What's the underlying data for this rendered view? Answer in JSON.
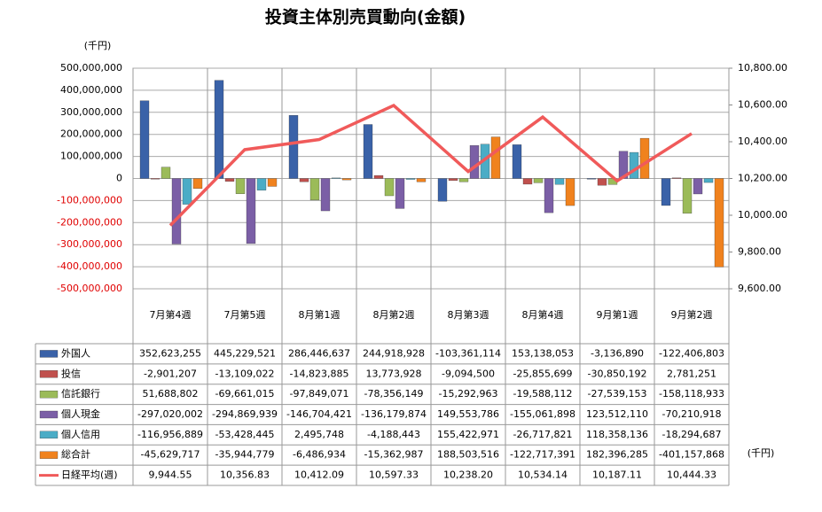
{
  "chart_data": {
    "type": "bar",
    "title": "投資主体別売買動向(金額)",
    "y_unit": "(千円)",
    "y2_unit": "(千円)",
    "categories": [
      "7月第4週",
      "7月第5週",
      "8月第1週",
      "8月第2週",
      "8月第3週",
      "8月第4週",
      "9月第1週",
      "9月第2週"
    ],
    "ylim": [
      -500000000,
      500000000
    ],
    "yticks": [
      {
        "value": -500000000,
        "label": "-500,000,000"
      },
      {
        "value": -400000000,
        "label": "-400,000,000"
      },
      {
        "value": -300000000,
        "label": "-300,000,000"
      },
      {
        "value": -200000000,
        "label": "-200,000,000"
      },
      {
        "value": -100000000,
        "label": "-100,000,000"
      },
      0,
      {
        "value": 100000000,
        "label": "100,000,000"
      },
      {
        "value": 200000000,
        "label": "200,000,000"
      },
      {
        "value": 300000000,
        "label": "300,000,000"
      },
      {
        "value": 400000000,
        "label": "400,000,000"
      },
      {
        "value": 500000000,
        "label": "500,000,000"
      }
    ],
    "y2lim": [
      9600,
      10800
    ],
    "y2ticks": [
      {
        "value": 9600,
        "label": "9,600.00"
      },
      {
        "value": 9800,
        "label": "9,800.00"
      },
      {
        "value": 10000,
        "label": "10,000.00"
      },
      {
        "value": 10200,
        "label": "10,200.00"
      },
      {
        "value": 10400,
        "label": "10,400.00"
      },
      {
        "value": 10600,
        "label": "10,600.00"
      },
      {
        "value": 10800,
        "label": "10,800.00"
      }
    ],
    "grid": true,
    "series": [
      {
        "name": "外国人",
        "color": "#3a62a8",
        "values": [
          352623255,
          445229521,
          286446637,
          244918928,
          -103361114,
          153138053,
          -3136890,
          -122406803
        ],
        "value_labels": [
          "352,623,255",
          "445,229,521",
          "286,446,637",
          "244,918,928",
          "-103,361,114",
          "153,138,053",
          "-3,136,890",
          "-122,406,803"
        ]
      },
      {
        "name": "投信",
        "color": "#c0504d",
        "values": [
          -2901207,
          -13109022,
          -14823885,
          13773928,
          -9094500,
          -25855699,
          -30850192,
          2781251
        ],
        "value_labels": [
          "-2,901,207",
          "-13,109,022",
          "-14,823,885",
          "13,773,928",
          "-9,094,500",
          "-25,855,699",
          "-30,850,192",
          "2,781,251"
        ]
      },
      {
        "name": "信託銀行",
        "color": "#9bbb59",
        "values": [
          51688802,
          -69661015,
          -97849071,
          -78356149,
          -15292963,
          -19588112,
          -27539153,
          -158118933
        ],
        "value_labels": [
          "51,688,802",
          "-69,661,015",
          "-97,849,071",
          "-78,356,149",
          "-15,292,963",
          "-19,588,112",
          "-27,539,153",
          "-158,118,933"
        ]
      },
      {
        "name": "個人現金",
        "color": "#7b5fa6",
        "values": [
          -297020002,
          -294869939,
          -146704421,
          -136179874,
          149553786,
          -155061898,
          123512110,
          -70210918
        ],
        "value_labels": [
          "-297,020,002",
          "-294,869,939",
          "-146,704,421",
          "-136,179,874",
          "149,553,786",
          "-155,061,898",
          "123,512,110",
          "-70,210,918"
        ]
      },
      {
        "name": "個人信用",
        "color": "#4bacc6",
        "values": [
          -116956889,
          -53428445,
          2495748,
          -4188443,
          155422971,
          -26717821,
          118358136,
          -18294687
        ],
        "value_labels": [
          "-116,956,889",
          "-53,428,445",
          "2,495,748",
          "-4,188,443",
          "155,422,971",
          "-26,717,821",
          "118,358,136",
          "-18,294,687"
        ]
      },
      {
        "name": "総合計",
        "color": "#f0821e",
        "values": [
          -45629717,
          -35944779,
          -6486934,
          -15362987,
          188503516,
          -122717391,
          182396285,
          -401157868
        ],
        "value_labels": [
          "-45,629,717",
          "-35,944,779",
          "-6,486,934",
          "-15,362,987",
          "188,503,516",
          "-122,717,391",
          "182,396,285",
          "-401,157,868"
        ]
      },
      {
        "name": "日経平均(週)",
        "color": "#f05a5a",
        "type": "line",
        "axis": "y2",
        "values": [
          9944.55,
          10356.83,
          10412.09,
          10597.33,
          10238.2,
          10534.14,
          10187.11,
          10444.33
        ],
        "value_labels": [
          "9,944.55",
          "10,356.83",
          "10,412.09",
          "10,597.33",
          "10,238.20",
          "10,534.14",
          "10,187.11",
          "10,444.33"
        ]
      }
    ]
  }
}
